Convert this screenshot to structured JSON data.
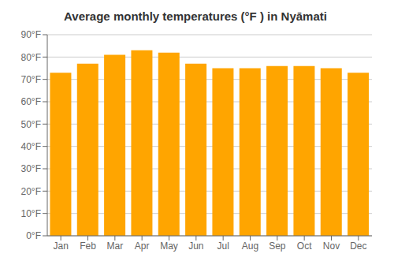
{
  "chart_data": {
    "type": "bar",
    "title": "Average monthly temperatures (°F ) in Nyāmati",
    "categories": [
      "Jan",
      "Feb",
      "Mar",
      "Apr",
      "May",
      "Jun",
      "Jul",
      "Aug",
      "Sep",
      "Oct",
      "Nov",
      "Dec"
    ],
    "values": [
      73,
      77,
      81,
      83,
      82,
      77,
      75,
      75,
      76,
      76,
      75,
      73
    ],
    "color": "#FFA500",
    "ylim": [
      0,
      90
    ],
    "yticks": [
      {
        "value": 0,
        "label": "0°F"
      },
      {
        "value": 10,
        "label": "10°F"
      },
      {
        "value": 20,
        "label": "20°F"
      },
      {
        "value": 30,
        "label": "30°F"
      },
      {
        "value": 40,
        "label": "40°F"
      },
      {
        "value": 50,
        "label": "50°F"
      },
      {
        "value": 60,
        "label": "60°F"
      },
      {
        "value": 70,
        "label": "70°F"
      },
      {
        "value": 80,
        "label": "80°F"
      },
      {
        "value": 90,
        "label": "90°F"
      }
    ],
    "grid": true
  }
}
